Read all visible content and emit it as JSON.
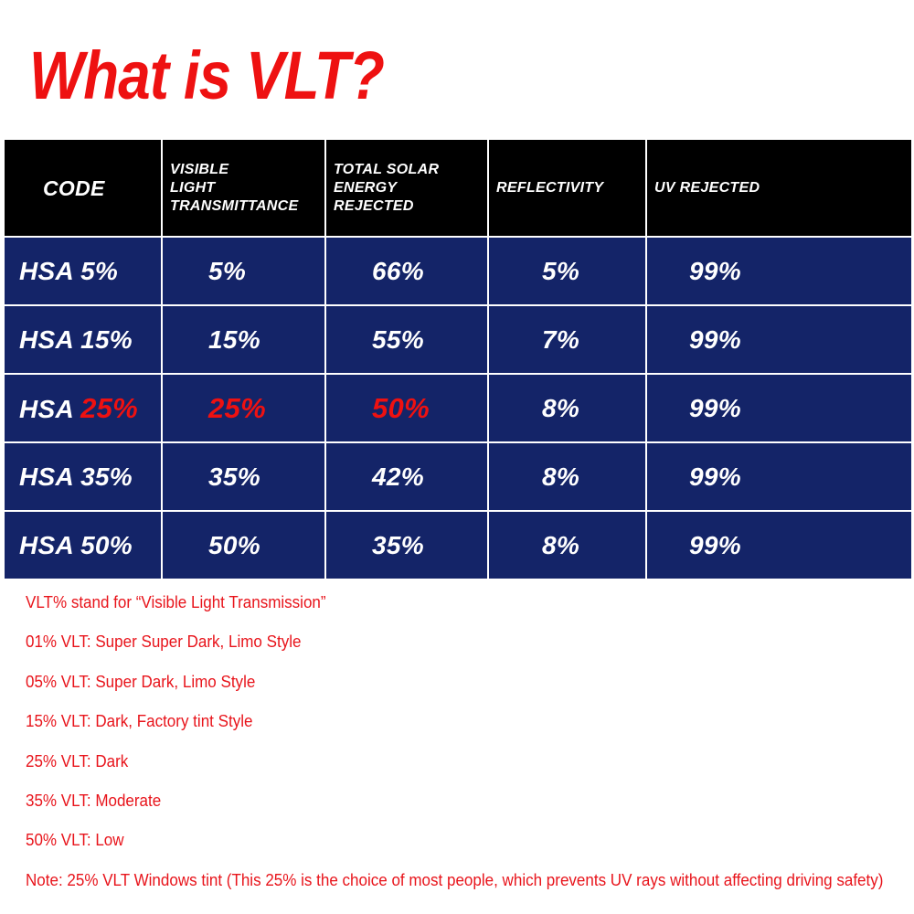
{
  "title": "What is VLT?",
  "table": {
    "headers": [
      [
        "CODE"
      ],
      [
        "VISIBLE",
        "LIGHT",
        "TRANSMITTANCE"
      ],
      [
        "TOTAL SOLAR",
        "ENERGY",
        "REJECTED"
      ],
      [
        "REFLECTIVITY"
      ],
      [
        "UV REJECTED"
      ]
    ],
    "rows": [
      {
        "code_prefix": "HSA ",
        "code_value": "5%",
        "vlt": "5%",
        "tser": "66%",
        "reflectivity": "5%",
        "uv": "99%",
        "highlight": false
      },
      {
        "code_prefix": "HSA ",
        "code_value": "15%",
        "vlt": "15%",
        "tser": "55%",
        "reflectivity": "7%",
        "uv": "99%",
        "highlight": false
      },
      {
        "code_prefix": "HSA ",
        "code_value": "25%",
        "vlt": "25%",
        "tser": "50%",
        "reflectivity": "8%",
        "uv": "99%",
        "highlight": true
      },
      {
        "code_prefix": "HSA ",
        "code_value": "35%",
        "vlt": "35%",
        "tser": "42%",
        "reflectivity": "8%",
        "uv": "99%",
        "highlight": false
      },
      {
        "code_prefix": "HSA ",
        "code_value": "50%",
        "vlt": "50%",
        "tser": "35%",
        "reflectivity": "8%",
        "uv": "99%",
        "highlight": false
      }
    ]
  },
  "notes": [
    "VLT% stand for “Visible Light Transmission”",
    "01% VLT: Super Super Dark, Limo Style",
    "05% VLT: Super Dark, Limo Style",
    "15% VLT: Dark, Factory tint Style",
    "25% VLT: Dark",
    "35% VLT: Moderate",
    "50% VLT: Low",
    "Note:  25% VLT Windows tint (This 25% is the choice of most people, which prevents UV rays without affecting driving safety)"
  ],
  "colors": {
    "title": "#ee1111",
    "header_bg": "#000000",
    "row_bg": "#142468",
    "highlight_text": "#ee1111",
    "note_text": "#e8141b"
  }
}
